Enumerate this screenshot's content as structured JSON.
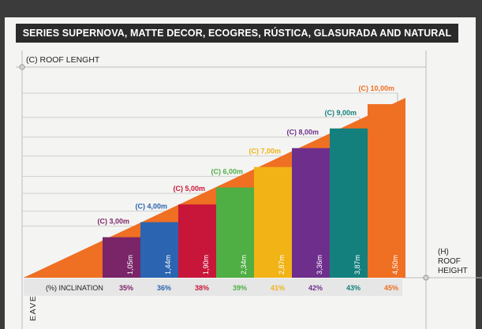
{
  "title": "SERIES SUPERNOVA, MATTE DECOR, ECOGRES, RÚSTICA, GLASURADA AND NATURAL",
  "labels": {
    "roof_length": "(C) ROOF LENGHT",
    "inclination": "(%) INCLINATION",
    "eave": "EAVE",
    "height_line1": "(H)",
    "height_line2": "ROOF",
    "height_line3": "HEIGHT"
  },
  "colors": {
    "background": "#3b3b3b",
    "card": "#f4f4f2",
    "title_bar": "#2b2b2b",
    "grid": "#c9c9c9"
  },
  "chart_data": {
    "type": "diagram",
    "series": [
      {
        "length": "(C) 3,00m",
        "height": "1,05m",
        "inclination": "35%",
        "height_m": 1.05,
        "color": "#7a2568"
      },
      {
        "length": "(C) 4,00m",
        "height": "1,44m",
        "inclination": "36%",
        "height_m": 1.44,
        "color": "#2b64b0"
      },
      {
        "length": "(C) 5,00m",
        "height": "1,90m",
        "inclination": "38%",
        "height_m": 1.9,
        "color": "#c8163a"
      },
      {
        "length": "(C) 6,00m",
        "height": "2,34m",
        "inclination": "39%",
        "height_m": 2.34,
        "color": "#4fae44"
      },
      {
        "length": "(C) 7,00m",
        "height": "2,87m",
        "inclination": "41%",
        "height_m": 2.87,
        "color": "#f2b316"
      },
      {
        "length": "(C) 8,00m",
        "height": "3,36m",
        "inclination": "42%",
        "height_m": 3.36,
        "color": "#6e2f8c"
      },
      {
        "length": "(C) 9,00m",
        "height": "3,87m",
        "inclination": "43%",
        "height_m": 3.87,
        "color": "#13807d"
      },
      {
        "length": "(C) 10,00m",
        "height": "4,50m",
        "inclination": "45%",
        "height_m": 4.5,
        "color": "#ef6f23"
      }
    ]
  }
}
